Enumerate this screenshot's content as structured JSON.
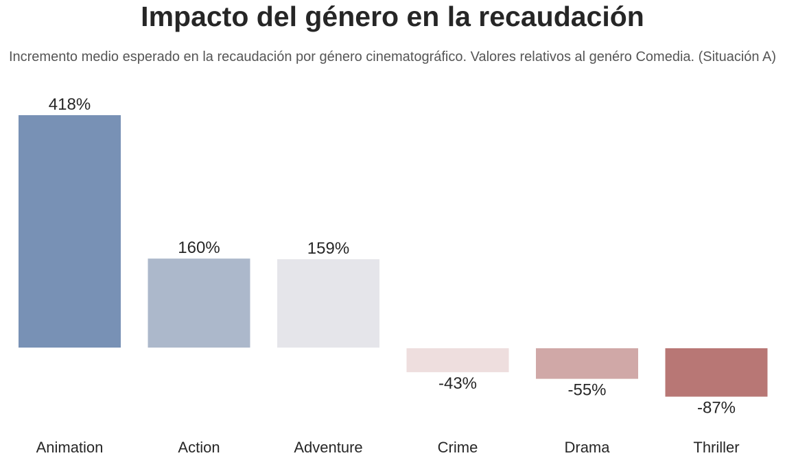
{
  "chart_data": {
    "type": "bar",
    "title": "Impacto del género en la recaudación",
    "subtitle": "Incremento medio esperado en la recaudación por género cinematográfico. Valores relativos al genéro Comedia. (Situación A)",
    "xlabel": "",
    "ylabel": "",
    "grid": false,
    "categories": [
      "Animation",
      "Action",
      "Adventure",
      "Crime",
      "Drama",
      "Thriller"
    ],
    "values": [
      418,
      160,
      159,
      -43,
      -55,
      -87
    ],
    "value_labels": [
      "418%",
      "160%",
      "159%",
      "-43%",
      "-55%",
      "-87%"
    ],
    "colors": [
      "#7891b5",
      "#acb8cb",
      "#e5e5ea",
      "#eedede",
      "#d0a8a7",
      "#b87775"
    ],
    "ylim": [
      -120,
      440
    ]
  }
}
